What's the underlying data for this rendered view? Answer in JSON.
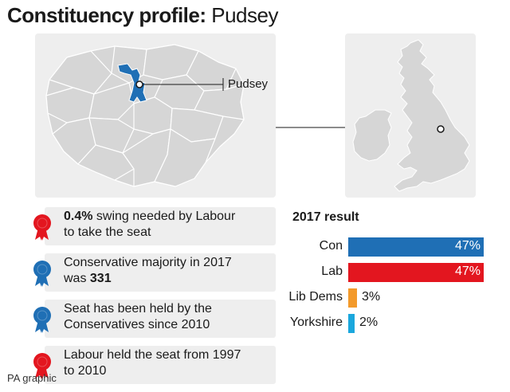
{
  "title": {
    "bold": "Constituency profile:",
    "regular": " Pudsey"
  },
  "map": {
    "label": "Pudsey"
  },
  "facts": [
    {
      "party": "labour",
      "bold": "0.4%",
      "text1": " swing needed by Labour",
      "text2": "to take the seat",
      "color": "#e3161f"
    },
    {
      "party": "conservative",
      "text1": "Conservative majority in 2017",
      "text2": "was ",
      "bold": "331",
      "color": "#1f6fb5"
    },
    {
      "party": "conservative",
      "text1": "Seat has been held by the",
      "text2": "Conservatives since 2010",
      "color": "#1f6fb5"
    },
    {
      "party": "labour",
      "text1": "Labour held the seat from 1997",
      "text2": "to 2010",
      "color": "#e3161f"
    }
  ],
  "results": {
    "title": "2017 result",
    "rows": [
      {
        "party": "Con",
        "value": 47,
        "label": "47%",
        "color": "#1f6fb5"
      },
      {
        "party": "Lab",
        "value": 47,
        "label": "47%",
        "color": "#e3161f"
      },
      {
        "party": "Lib Dems",
        "value": 3,
        "label": "3%",
        "color": "#f39a2b"
      },
      {
        "party": "Yorkshire",
        "value": 2,
        "label": "2%",
        "color": "#1aa7dd"
      }
    ]
  },
  "footer": "PA graphic",
  "colors": {
    "panel": "#eeeeee",
    "map_fill": "#d6d6d6",
    "map_stroke": "#ffffff",
    "highlight": "#1f6fb5"
  }
}
